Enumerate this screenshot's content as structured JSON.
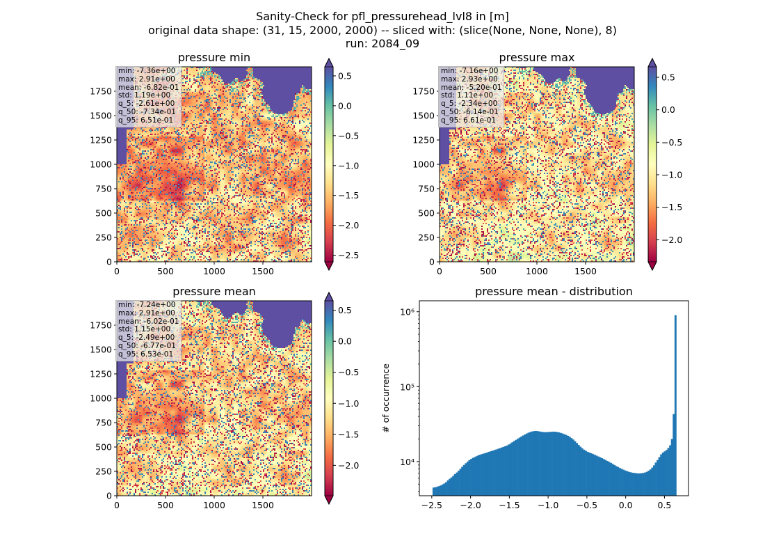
{
  "suptitle": {
    "line1": "Sanity-Check for pfl_pressurehead_lvl8 in [m]",
    "line2": "original data shape: (31, 15, 2000, 2000) -- sliced with: (slice(None, None, None), 8)",
    "line3": "run: 2084_09"
  },
  "colors": {
    "spectral_ramp": [
      "#9e0142",
      "#d53e4f",
      "#f46d43",
      "#fdae61",
      "#fee08b",
      "#ffffbf",
      "#e6f598",
      "#abdda4",
      "#66c2a5",
      "#3288bd",
      "#5e4fa2"
    ],
    "histogram_bar": "#1f77b4",
    "sea": "#5e4fa2"
  },
  "chart_data": [
    {
      "type": "heatmap",
      "title": "pressure min",
      "x_ticks": [
        "0",
        "500",
        "1000",
        "1500"
      ],
      "y_ticks": [
        "0",
        "250",
        "500",
        "750",
        "1000",
        "1250",
        "1500",
        "1750"
      ],
      "xlim": [
        0,
        2000
      ],
      "ylim": [
        0,
        2000
      ],
      "colorbar": {
        "vmin": -2.61,
        "vmax": 0.651,
        "ticks": [
          0.5,
          0.0,
          -0.5,
          -1.0,
          -1.5,
          -2.0,
          -2.5
        ],
        "tick_labels": [
          "0.5",
          "0.0",
          "−0.5",
          "−1.0",
          "−1.5",
          "−2.0",
          "−2.5"
        ],
        "extend": "both"
      },
      "stats": [
        "min: -7.36e+00",
        "max: 2.91e+00",
        "mean: -6.82e-01",
        "std: 1.19e+00",
        "q_5: -2.61e+00",
        "q_50: -7.34e-01",
        "q_95: 6.51e-01"
      ]
    },
    {
      "type": "heatmap",
      "title": "pressure max",
      "x_ticks": [
        "0",
        "500",
        "1000",
        "1500"
      ],
      "y_ticks": [
        "0",
        "250",
        "500",
        "750",
        "1000",
        "1250",
        "1500",
        "1750"
      ],
      "xlim": [
        0,
        2000
      ],
      "ylim": [
        0,
        2000
      ],
      "colorbar": {
        "vmin": -2.34,
        "vmax": 0.661,
        "ticks": [
          0.5,
          0.0,
          -0.5,
          -1.0,
          -1.5,
          -2.0
        ],
        "tick_labels": [
          "0.5",
          "0.0",
          "−0.5",
          "−1.0",
          "−1.5",
          "−2.0"
        ],
        "extend": "both"
      },
      "stats": [
        "min: -7.16e+00",
        "max: 2.93e+00",
        "mean: -5.20e-01",
        "std: 1.11e+00",
        "q_5: -2.34e+00",
        "q_50: -6.14e-01",
        "q_95: 6.61e-01"
      ]
    },
    {
      "type": "heatmap",
      "title": "pressure mean",
      "x_ticks": [
        "0",
        "500",
        "1000",
        "1500"
      ],
      "y_ticks": [
        "0",
        "250",
        "500",
        "750",
        "1000",
        "1250",
        "1500",
        "1750"
      ],
      "xlim": [
        0,
        2000
      ],
      "ylim": [
        0,
        2000
      ],
      "colorbar": {
        "vmin": -2.49,
        "vmax": 0.653,
        "ticks": [
          0.5,
          0.0,
          -0.5,
          -1.0,
          -1.5,
          -2.0
        ],
        "tick_labels": [
          "0.5",
          "0.0",
          "−0.5",
          "−1.0",
          "−1.5",
          "−2.0"
        ],
        "extend": "both"
      },
      "stats": [
        "min: -7.24e+00",
        "max: 2.91e+00",
        "mean: -6.02e-01",
        "std: 1.15e+00",
        "q_5: -2.49e+00",
        "q_50: -6.77e-01",
        "q_95: 6.53e-01"
      ]
    },
    {
      "type": "bar",
      "title": "pressure mean - distribution",
      "ylabel": "# of occurrence",
      "yscale": "log",
      "xlim": [
        -2.66,
        0.81
      ],
      "ylim": [
        3500,
        1400000
      ],
      "x_ticks": [
        -2.5,
        -2.0,
        -1.5,
        -1.0,
        -0.5,
        0.0,
        0.5
      ],
      "x_tick_labels": [
        "−2.5",
        "−2.0",
        "−1.5",
        "−1.0",
        "−0.5",
        "0.0",
        "0.5"
      ],
      "y_ticks": [
        10000,
        100000,
        1000000
      ],
      "y_tick_labels": [
        "10⁴",
        "10⁵",
        "10⁶"
      ],
      "bin_range": [
        -2.49,
        0.653
      ],
      "values": [
        4500,
        4550,
        4600,
        4700,
        4800,
        4950,
        5100,
        5300,
        5600,
        5900,
        6150,
        6450,
        6800,
        7150,
        7550,
        8000,
        8500,
        9000,
        9500,
        10000,
        10450,
        10850,
        11200,
        11500,
        11800,
        12100,
        12350,
        12600,
        12800,
        13000,
        13250,
        13500,
        13750,
        14000,
        14250,
        14500,
        14800,
        15100,
        15400,
        15700,
        16000,
        16400,
        16900,
        17500,
        18100,
        18800,
        19500,
        20200,
        20900,
        21600,
        22300,
        23000,
        23700,
        24300,
        24800,
        25200,
        25500,
        25600,
        25500,
        25300,
        25000,
        24800,
        24700,
        24700,
        24800,
        24900,
        25000,
        25100,
        25000,
        24800,
        24500,
        24100,
        23700,
        23200,
        22700,
        22100,
        21400,
        20600,
        19700,
        18700,
        17700,
        16700,
        15800,
        15000,
        14400,
        13900,
        13500,
        13200,
        12900,
        12600,
        12300,
        12000,
        11700,
        11400,
        11100,
        10800,
        10500,
        10200,
        9900,
        9600,
        9300,
        9000,
        8700,
        8450,
        8200,
        8000,
        7800,
        7600,
        7450,
        7300,
        7200,
        7100,
        7050,
        7000,
        6950,
        6950,
        7000,
        7050,
        7150,
        7300,
        7550,
        7850,
        8300,
        8900,
        9700,
        10500,
        11500,
        12500,
        13200,
        13700,
        14300,
        15200,
        16500,
        20000,
        43000,
        900000
      ]
    }
  ]
}
